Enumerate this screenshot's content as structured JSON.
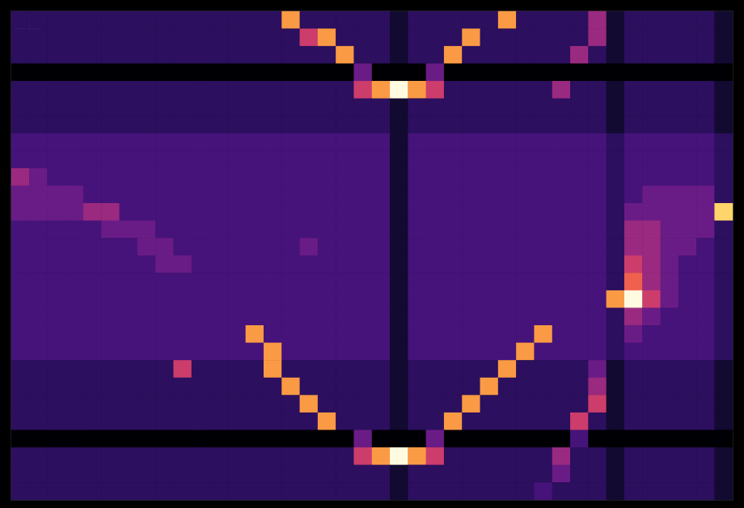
{
  "chart_data": {
    "type": "heatmap",
    "annotation": "1",
    "color": "magma",
    "tick_labels": false,
    "zlim": [
      0,
      10
    ],
    "cells": [
      [
        2,
        2,
        2,
        2,
        2,
        2,
        2,
        2,
        2,
        2,
        2,
        2,
        2,
        2,
        2,
        8,
        2,
        2,
        2,
        2,
        2,
        1,
        2,
        2,
        2,
        2,
        2,
        8,
        2,
        2,
        2,
        2,
        5,
        1,
        2,
        2,
        2,
        2,
        2,
        1
      ],
      [
        2,
        2,
        2,
        2,
        2,
        2,
        2,
        2,
        2,
        2,
        2,
        2,
        2,
        2,
        2,
        2,
        6,
        8,
        2,
        2,
        2,
        1,
        2,
        2,
        2,
        8,
        2,
        2,
        2,
        2,
        2,
        2,
        5,
        1,
        2,
        2,
        2,
        2,
        2,
        1
      ],
      [
        2,
        2,
        2,
        2,
        2,
        2,
        2,
        2,
        2,
        2,
        2,
        2,
        2,
        2,
        2,
        2,
        2,
        2,
        8,
        2,
        2,
        1,
        2,
        2,
        8,
        2,
        2,
        2,
        2,
        2,
        2,
        5,
        2,
        1,
        2,
        2,
        2,
        2,
        2,
        1
      ],
      [
        0,
        0,
        0,
        0,
        0,
        0,
        0,
        0,
        0,
        0,
        0,
        0,
        0,
        0,
        0,
        0,
        0,
        0,
        0,
        4,
        0,
        0,
        0,
        4,
        0,
        0,
        0,
        0,
        0,
        0,
        0,
        0,
        0,
        0,
        0,
        0,
        0,
        0,
        0,
        0
      ],
      [
        2,
        2,
        2,
        2,
        2,
        2,
        2,
        2,
        2,
        2,
        2,
        2,
        2,
        2,
        2,
        2,
        2,
        2,
        2,
        6,
        8,
        10,
        8,
        6,
        2,
        2,
        2,
        2,
        2,
        2,
        5,
        2,
        2,
        1,
        2,
        2,
        2,
        2,
        2,
        1
      ],
      [
        2,
        2,
        2,
        2,
        2,
        2,
        2,
        2,
        2,
        2,
        2,
        2,
        2,
        2,
        2,
        2,
        2,
        2,
        2,
        2,
        2,
        1,
        2,
        2,
        2,
        2,
        2,
        2,
        2,
        2,
        2,
        2,
        2,
        1,
        2,
        2,
        2,
        2,
        2,
        1
      ],
      [
        2,
        2,
        2,
        2,
        2,
        2,
        2,
        2,
        2,
        2,
        2,
        2,
        2,
        2,
        2,
        2,
        2,
        2,
        2,
        2,
        2,
        1,
        2,
        2,
        2,
        2,
        2,
        2,
        2,
        2,
        2,
        2,
        2,
        1,
        2,
        2,
        2,
        2,
        2,
        1
      ],
      [
        3,
        3,
        3,
        3,
        3,
        3,
        3,
        3,
        3,
        3,
        3,
        3,
        3,
        3,
        3,
        3,
        3,
        3,
        3,
        3,
        3,
        1,
        3,
        3,
        3,
        3,
        3,
        3,
        3,
        3,
        3,
        3,
        3,
        2,
        3,
        3,
        3,
        3,
        3,
        2
      ],
      [
        3,
        3,
        3,
        3,
        3,
        3,
        3,
        3,
        3,
        3,
        3,
        3,
        3,
        3,
        3,
        3,
        3,
        3,
        3,
        3,
        3,
        1,
        3,
        3,
        3,
        3,
        3,
        3,
        3,
        3,
        3,
        3,
        3,
        2,
        3,
        3,
        3,
        3,
        3,
        2
      ],
      [
        5,
        4,
        3,
        3,
        3,
        3,
        3,
        3,
        3,
        3,
        3,
        3,
        3,
        3,
        3,
        3,
        3,
        3,
        3,
        3,
        3,
        1,
        3,
        3,
        3,
        3,
        3,
        3,
        3,
        3,
        3,
        3,
        3,
        2,
        3,
        3,
        3,
        3,
        3,
        2
      ],
      [
        4,
        4,
        4,
        4,
        3,
        3,
        3,
        3,
        3,
        3,
        3,
        3,
        3,
        3,
        3,
        3,
        3,
        3,
        3,
        3,
        3,
        1,
        3,
        3,
        3,
        3,
        3,
        3,
        3,
        3,
        3,
        3,
        3,
        2,
        3,
        4,
        4,
        4,
        4,
        2
      ],
      [
        4,
        4,
        4,
        4,
        5,
        5,
        3,
        3,
        3,
        3,
        3,
        3,
        3,
        3,
        3,
        3,
        3,
        3,
        3,
        3,
        3,
        1,
        3,
        3,
        3,
        3,
        3,
        3,
        3,
        3,
        3,
        3,
        3,
        2,
        4,
        4,
        4,
        4,
        4,
        9
      ],
      [
        3,
        3,
        3,
        3,
        3,
        4,
        4,
        4,
        3,
        3,
        3,
        3,
        3,
        3,
        3,
        3,
        3,
        3,
        3,
        3,
        3,
        1,
        3,
        3,
        3,
        3,
        3,
        3,
        3,
        3,
        3,
        3,
        3,
        2,
        5,
        5,
        4,
        4,
        4,
        2
      ],
      [
        3,
        3,
        3,
        3,
        3,
        3,
        3,
        4,
        4,
        3,
        3,
        3,
        3,
        3,
        3,
        3,
        4,
        3,
        3,
        3,
        3,
        1,
        3,
        3,
        3,
        3,
        3,
        3,
        3,
        3,
        3,
        3,
        3,
        2,
        5,
        5,
        4,
        4,
        3,
        2
      ],
      [
        3,
        3,
        3,
        3,
        3,
        3,
        3,
        3,
        4,
        4,
        3,
        3,
        3,
        3,
        3,
        3,
        3,
        3,
        3,
        3,
        3,
        1,
        3,
        3,
        3,
        3,
        3,
        3,
        3,
        3,
        3,
        3,
        3,
        2,
        6,
        5,
        4,
        3,
        3,
        2
      ],
      [
        3,
        3,
        3,
        3,
        3,
        3,
        3,
        3,
        3,
        3,
        3,
        3,
        3,
        3,
        3,
        3,
        3,
        3,
        3,
        3,
        3,
        1,
        3,
        3,
        3,
        3,
        3,
        3,
        3,
        3,
        3,
        3,
        3,
        2,
        7,
        5,
        4,
        3,
        3,
        2
      ],
      [
        3,
        3,
        3,
        3,
        3,
        3,
        3,
        3,
        3,
        3,
        3,
        3,
        3,
        3,
        3,
        3,
        3,
        3,
        3,
        3,
        3,
        1,
        3,
        3,
        3,
        3,
        3,
        3,
        3,
        3,
        3,
        3,
        3,
        8,
        10,
        6,
        4,
        3,
        3,
        2
      ],
      [
        3,
        3,
        3,
        3,
        3,
        3,
        3,
        3,
        3,
        3,
        3,
        3,
        3,
        3,
        3,
        3,
        3,
        3,
        3,
        3,
        3,
        1,
        3,
        3,
        3,
        3,
        3,
        3,
        3,
        3,
        3,
        3,
        3,
        2,
        5,
        4,
        3,
        3,
        3,
        2
      ],
      [
        3,
        3,
        3,
        3,
        3,
        3,
        3,
        3,
        3,
        3,
        3,
        3,
        3,
        8,
        3,
        3,
        3,
        3,
        3,
        3,
        3,
        1,
        3,
        3,
        3,
        3,
        3,
        3,
        3,
        8,
        3,
        3,
        3,
        2,
        4,
        3,
        3,
        3,
        3,
        2
      ],
      [
        3,
        3,
        3,
        3,
        3,
        3,
        3,
        3,
        3,
        3,
        3,
        3,
        3,
        3,
        8,
        3,
        3,
        3,
        3,
        3,
        3,
        1,
        3,
        3,
        3,
        3,
        3,
        3,
        8,
        3,
        3,
        3,
        3,
        2,
        3,
        3,
        3,
        3,
        3,
        2
      ],
      [
        2,
        2,
        2,
        2,
        2,
        2,
        2,
        2,
        2,
        6,
        2,
        2,
        2,
        2,
        8,
        2,
        2,
        2,
        2,
        2,
        2,
        1,
        2,
        2,
        2,
        2,
        2,
        8,
        2,
        2,
        2,
        2,
        4,
        1,
        2,
        2,
        2,
        2,
        2,
        1
      ],
      [
        2,
        2,
        2,
        2,
        2,
        2,
        2,
        2,
        2,
        2,
        2,
        2,
        2,
        2,
        2,
        8,
        2,
        2,
        2,
        2,
        2,
        1,
        2,
        2,
        2,
        2,
        8,
        2,
        2,
        2,
        2,
        2,
        5,
        1,
        2,
        2,
        2,
        2,
        2,
        1
      ],
      [
        2,
        2,
        2,
        2,
        2,
        2,
        2,
        2,
        2,
        2,
        2,
        2,
        2,
        2,
        2,
        2,
        8,
        2,
        2,
        2,
        2,
        1,
        2,
        2,
        2,
        8,
        2,
        2,
        2,
        2,
        2,
        2,
        6,
        1,
        2,
        2,
        2,
        2,
        2,
        1
      ],
      [
        2,
        2,
        2,
        2,
        2,
        2,
        2,
        2,
        2,
        2,
        2,
        2,
        2,
        2,
        2,
        2,
        2,
        8,
        2,
        2,
        2,
        1,
        2,
        2,
        8,
        2,
        2,
        2,
        2,
        2,
        2,
        6,
        2,
        1,
        2,
        2,
        2,
        2,
        2,
        1
      ],
      [
        0,
        0,
        0,
        0,
        0,
        0,
        0,
        0,
        0,
        0,
        0,
        0,
        0,
        0,
        0,
        0,
        0,
        0,
        0,
        4,
        0,
        0,
        0,
        4,
        0,
        0,
        0,
        0,
        0,
        0,
        0,
        3,
        0,
        0,
        0,
        0,
        0,
        0,
        0,
        0
      ],
      [
        2,
        2,
        2,
        2,
        2,
        2,
        2,
        2,
        2,
        2,
        2,
        2,
        2,
        2,
        2,
        2,
        2,
        2,
        2,
        6,
        8,
        10,
        8,
        6,
        2,
        2,
        2,
        2,
        2,
        2,
        5,
        2,
        2,
        1,
        2,
        2,
        2,
        2,
        2,
        1
      ],
      [
        2,
        2,
        2,
        2,
        2,
        2,
        2,
        2,
        2,
        2,
        2,
        2,
        2,
        2,
        2,
        2,
        2,
        2,
        2,
        2,
        2,
        1,
        2,
        2,
        2,
        2,
        2,
        2,
        2,
        2,
        4,
        2,
        2,
        1,
        2,
        2,
        2,
        2,
        2,
        1
      ],
      [
        2,
        2,
        2,
        2,
        2,
        2,
        2,
        2,
        2,
        2,
        2,
        2,
        2,
        2,
        2,
        2,
        2,
        2,
        2,
        2,
        2,
        1,
        2,
        2,
        2,
        2,
        2,
        2,
        2,
        3,
        2,
        2,
        2,
        1,
        2,
        2,
        2,
        2,
        2,
        1
      ]
    ]
  }
}
